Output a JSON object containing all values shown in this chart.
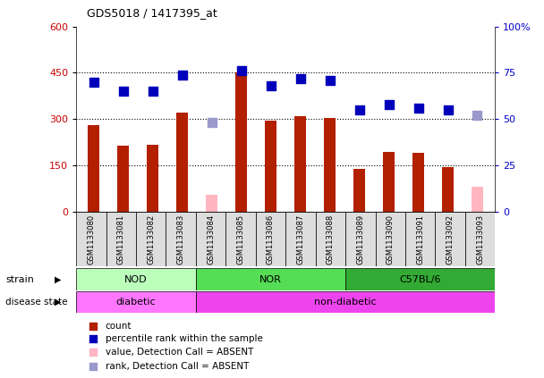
{
  "title": "GDS5018 / 1417395_at",
  "samples": [
    "GSM1133080",
    "GSM1133081",
    "GSM1133082",
    "GSM1133083",
    "GSM1133084",
    "GSM1133085",
    "GSM1133086",
    "GSM1133087",
    "GSM1133088",
    "GSM1133089",
    "GSM1133090",
    "GSM1133091",
    "GSM1133092",
    "GSM1133093"
  ],
  "count_values": [
    280,
    215,
    218,
    320,
    null,
    450,
    295,
    310,
    305,
    140,
    195,
    190,
    143,
    null
  ],
  "absent_count_values": [
    null,
    null,
    null,
    null,
    55,
    null,
    null,
    null,
    null,
    null,
    null,
    null,
    null,
    80
  ],
  "rank_values": [
    70,
    65,
    65,
    74,
    null,
    76,
    68,
    72,
    71,
    55,
    58,
    56,
    55,
    null
  ],
  "absent_rank_values": [
    null,
    null,
    null,
    null,
    48,
    null,
    null,
    null,
    null,
    null,
    null,
    null,
    null,
    52
  ],
  "bar_color": "#B22000",
  "absent_bar_color": "#FFB6C1",
  "dot_color": "#0000BB",
  "absent_dot_color": "#9999CC",
  "ylim_left": [
    0,
    600
  ],
  "ylim_right": [
    0,
    100
  ],
  "yticks_left": [
    0,
    150,
    300,
    450,
    600
  ],
  "yticks_right": [
    0,
    25,
    50,
    75,
    100
  ],
  "ytick_labels_right": [
    "0",
    "25",
    "50",
    "75",
    "100%"
  ],
  "hlines": [
    150,
    300,
    450
  ],
  "strain_groups": [
    {
      "label": "NOD",
      "start": 0,
      "end": 4,
      "color": "#BBFFBB"
    },
    {
      "label": "NOR",
      "start": 4,
      "end": 9,
      "color": "#55DD55"
    },
    {
      "label": "C57BL/6",
      "start": 9,
      "end": 14,
      "color": "#33AA33"
    }
  ],
  "disease_groups": [
    {
      "label": "diabetic",
      "start": 0,
      "end": 4,
      "color": "#FF77FF"
    },
    {
      "label": "non-diabetic",
      "start": 4,
      "end": 14,
      "color": "#EE44EE"
    }
  ],
  "legend_items": [
    {
      "label": "count",
      "color": "#B22000"
    },
    {
      "label": "percentile rank within the sample",
      "color": "#0000BB"
    },
    {
      "label": "value, Detection Call = ABSENT",
      "color": "#FFB6C1"
    },
    {
      "label": "rank, Detection Call = ABSENT",
      "color": "#9999CC"
    }
  ],
  "left_tick_color": "#CC0000",
  "right_tick_color": "#0000CC",
  "bg_color": "#FFFFFF",
  "plot_bg_color": "#FFFFFF",
  "bar_width": 0.4,
  "dot_size": 55
}
